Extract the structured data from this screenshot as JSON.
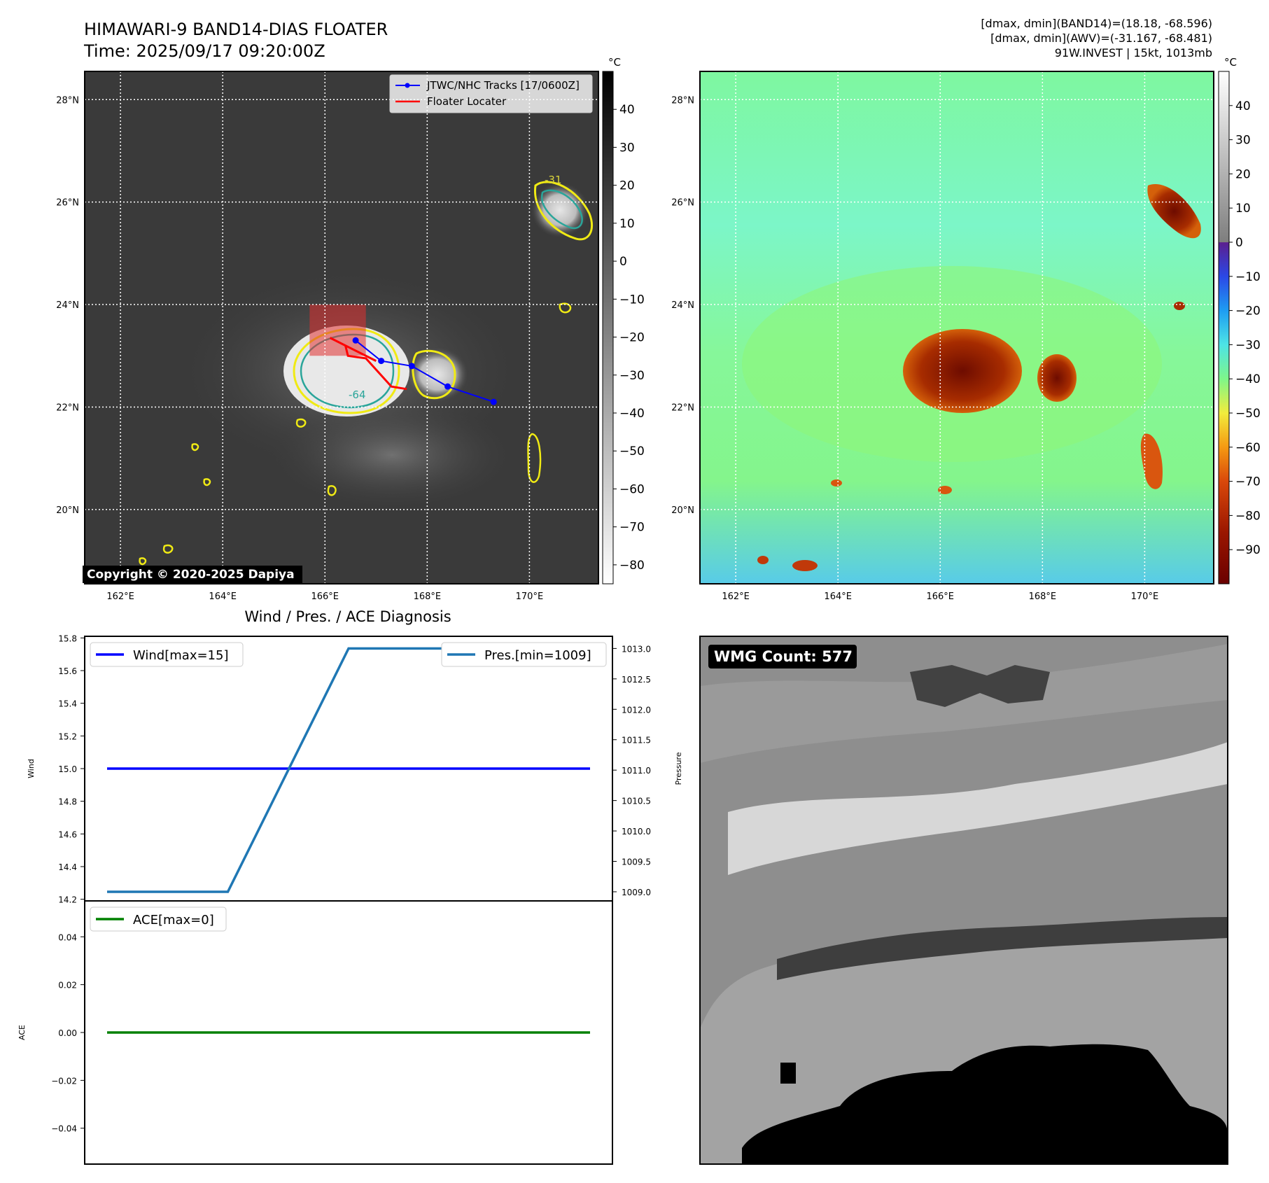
{
  "header": {
    "title_line1": "HIMAWARI-9 BAND14-DIAS FLOATER",
    "title_line2": "Time: 2025/09/17 09:20:00Z",
    "stats_line1": "[dmax, dmin](BAND14)=(18.18, -68.596)",
    "stats_line2": "[dmax, dmin](AWV)=(-31.167, -68.481)",
    "stats_line3": "91W.INVEST | 15kt, 1013mb"
  },
  "map": {
    "lon_ticks": [
      "162°E",
      "164°E",
      "166°E",
      "168°E",
      "170°E"
    ],
    "lat_ticks": [
      "28°N",
      "26°N",
      "24°N",
      "22°N",
      "20°N"
    ],
    "lon_values": [
      162,
      164,
      166,
      168,
      170
    ],
    "lat_values": [
      28,
      26,
      24,
      22,
      20
    ],
    "lon_range": [
      161.3,
      171.35
    ],
    "lat_range": [
      18.55,
      28.55
    ],
    "colorbar_unit": "°C",
    "copyright": "Copyright © 2020-2025 Dapiya",
    "legend": [
      "JTWC/NHC Tracks [17/0600Z]",
      "Floater Locater"
    ],
    "contour_labels": [
      "-31",
      "-64"
    ],
    "colorbar1_ticks": [
      "40",
      "30",
      "20",
      "10",
      "0",
      "−10",
      "−20",
      "−30",
      "−40",
      "−50",
      "−60",
      "−70",
      "−80"
    ],
    "colorbar1_values": [
      40,
      30,
      20,
      10,
      0,
      -10,
      -20,
      -30,
      -40,
      -50,
      -60,
      -70,
      -80
    ],
    "colorbar1_range": [
      -85,
      50
    ],
    "colorbar2_ticks": [
      "40",
      "30",
      "20",
      "10",
      "0",
      "−10",
      "−20",
      "−30",
      "−40",
      "−50",
      "−60",
      "−70",
      "−80",
      "−90"
    ],
    "colorbar2_values": [
      40,
      30,
      20,
      10,
      0,
      -10,
      -20,
      -30,
      -40,
      -50,
      -60,
      -70,
      -80,
      -90
    ],
    "colorbar2_range": [
      -100,
      50
    ],
    "track_points": [
      {
        "lon": 169.3,
        "lat": 22.1
      },
      {
        "lon": 168.4,
        "lat": 22.4
      },
      {
        "lon": 167.7,
        "lat": 22.8
      },
      {
        "lon": 167.1,
        "lat": 22.9
      },
      {
        "lon": 166.6,
        "lat": 23.3
      }
    ],
    "floater_path": [
      {
        "lon": 167.6,
        "lat": 22.35
      },
      {
        "lon": 167.3,
        "lat": 22.4
      },
      {
        "lon": 166.8,
        "lat": 22.95
      },
      {
        "lon": 166.45,
        "lat": 23.0
      },
      {
        "lon": 166.4,
        "lat": 23.2
      },
      {
        "lon": 166.1,
        "lat": 23.35
      },
      {
        "lon": 166.5,
        "lat": 23.15
      },
      {
        "lon": 167.0,
        "lat": 22.9
      }
    ],
    "floater_box": {
      "lon_min": 165.7,
      "lon_max": 166.8,
      "lat_min": 23.0,
      "lat_max": 24.0
    }
  },
  "diagnosis": {
    "title": "Wind / Pres. / ACE Diagnosis",
    "wind_label": "Wind",
    "pressure_label": "Pressure",
    "ace_label": "ACE",
    "legend_wind": "Wind[max=15]",
    "legend_pres": "Pres.[min=1009]",
    "legend_ace": "ACE[max=0]",
    "wind_ticks": [
      "15.8",
      "15.6",
      "15.4",
      "15.2",
      "15.0",
      "14.8",
      "14.6",
      "14.4",
      "14.2"
    ],
    "wind_tick_values": [
      15.8,
      15.6,
      15.4,
      15.2,
      15.0,
      14.8,
      14.6,
      14.4,
      14.2
    ],
    "wind_range": [
      14.19,
      15.81
    ],
    "pres_ticks": [
      "1013.0",
      "1012.5",
      "1012.0",
      "1011.5",
      "1011.0",
      "1010.5",
      "1010.0",
      "1009.5",
      "1009.0"
    ],
    "pres_tick_values": [
      1013.0,
      1012.5,
      1012.0,
      1011.5,
      1011.0,
      1010.5,
      1010.0,
      1009.5,
      1009.0
    ],
    "pres_range": [
      1008.85,
      1013.2
    ],
    "ace_ticks": [
      "0.04",
      "0.02",
      "0.00",
      "−0.02",
      "−0.04"
    ],
    "ace_tick_values": [
      0.04,
      0.02,
      0.0,
      -0.02,
      -0.04
    ],
    "ace_range": [
      -0.055,
      0.055
    ],
    "colors": {
      "wind": "#0000ff",
      "pres": "#1f77b4",
      "ace": "#008000"
    }
  },
  "chart_data": {
    "type": "line",
    "title": "Wind / Pres. / ACE Diagnosis",
    "x": [
      0,
      1,
      2,
      3,
      4
    ],
    "series": [
      {
        "name": "Wind[max=15]",
        "values": [
          15,
          15,
          15,
          15,
          15
        ]
      },
      {
        "name": "Pres.[min=1009]",
        "values": [
          1009,
          1009,
          1013,
          1013,
          1013
        ]
      },
      {
        "name": "ACE[max=0]",
        "values": [
          0,
          0,
          0,
          0,
          0
        ]
      }
    ]
  },
  "wmg": {
    "label": "WMG Count: 577"
  }
}
